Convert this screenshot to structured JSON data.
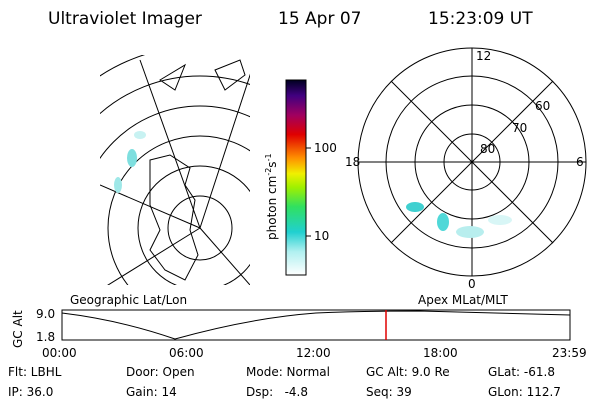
{
  "header": {
    "title": "Ultraviolet Imager",
    "date": "15 Apr 07",
    "time": "15:23:09 UT"
  },
  "colorbar": {
    "label_parts": [
      "photon cm",
      "-2",
      "s",
      "-1"
    ],
    "ticks": [
      "100",
      "10"
    ]
  },
  "polar": {
    "labels": [
      "12",
      "60",
      "70",
      "80",
      "18",
      "6",
      "0"
    ]
  },
  "altitude": {
    "left_title": "Geographic Lat/Lon",
    "right_title": "Apex MLat/MLT",
    "ylabel": "GC Alt",
    "yticks": [
      "9.0",
      "1.8"
    ],
    "xticks": [
      "00:00",
      "06:00",
      "12:00",
      "18:00",
      "23:59"
    ]
  },
  "info": {
    "rows": [
      [
        "Flt: LBHL",
        "Door: Open",
        "Mode: Normal",
        "GC Alt: 9.0 Re",
        "GLat: -61.8"
      ],
      [
        "IP: 36.0",
        "Gain: 14",
        "Dsp:   -4.8",
        "Seq: 39",
        "GLon: 112.7"
      ]
    ]
  }
}
